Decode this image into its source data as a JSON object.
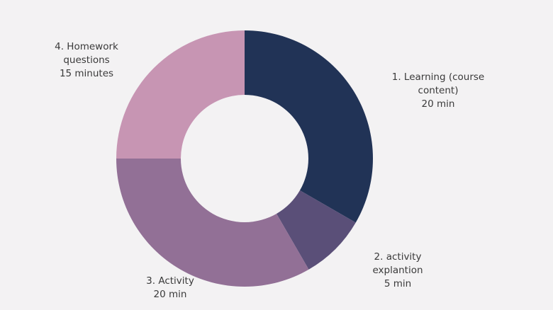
{
  "chart_data": {
    "type": "pie",
    "donut": true,
    "slices": [
      {
        "label_lines": [
          "1. Learning (course",
          "content)",
          "20 min"
        ],
        "value": 20,
        "color": "#213356"
      },
      {
        "label_lines": [
          "2. activity",
          "explantion",
          "5 min"
        ],
        "value": 5,
        "color": "#5a4f78"
      },
      {
        "label_lines": [
          "3. Activity",
          "20 min"
        ],
        "value": 20,
        "color": "#927096"
      },
      {
        "label_lines": [
          "4. Homework",
          "questions",
          "15 minutes"
        ],
        "value": 15,
        "color": "#c795b3"
      }
    ],
    "start_angle": "12 o'clock",
    "direction": "clockwise",
    "background": "#f3f2f3"
  }
}
